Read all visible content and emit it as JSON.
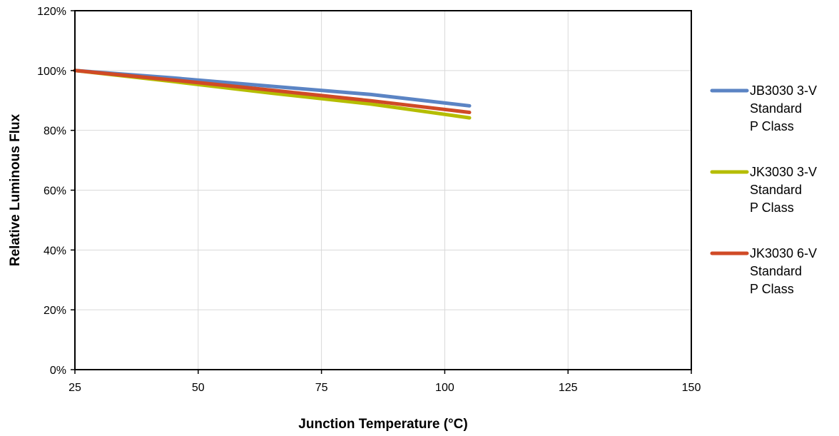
{
  "chart_data": {
    "type": "line",
    "title": "",
    "xlabel": "Junction Temperature (°C)",
    "ylabel": "Relative Luminous Flux",
    "xlim": [
      25,
      150
    ],
    "ylim": [
      0,
      120
    ],
    "x_ticks": [
      "25",
      "50",
      "75",
      "100",
      "125",
      "150"
    ],
    "y_ticks": [
      "0%",
      "20%",
      "40%",
      "60%",
      "80%",
      "100%",
      "120%"
    ],
    "grid": "vertical",
    "legend_position": "right",
    "x": [
      25,
      45,
      65,
      85,
      105
    ],
    "series": [
      {
        "name_lines": [
          "JB3030 3-V",
          "Standard",
          "P Class"
        ],
        "color": "#5b84c4",
        "values": [
          100,
          97.5,
          94.7,
          92,
          88.2
        ]
      },
      {
        "name_lines": [
          "JK3030 3-V",
          "Standard",
          "P Class"
        ],
        "color": "#b5bd00",
        "values": [
          100,
          96.3,
          92.4,
          88.8,
          84.2
        ]
      },
      {
        "name_lines": [
          "JK3030 6-V",
          "Standard",
          "P Class"
        ],
        "color": "#d04a26",
        "values": [
          100,
          96.8,
          93.4,
          89.9,
          86
        ]
      }
    ]
  }
}
